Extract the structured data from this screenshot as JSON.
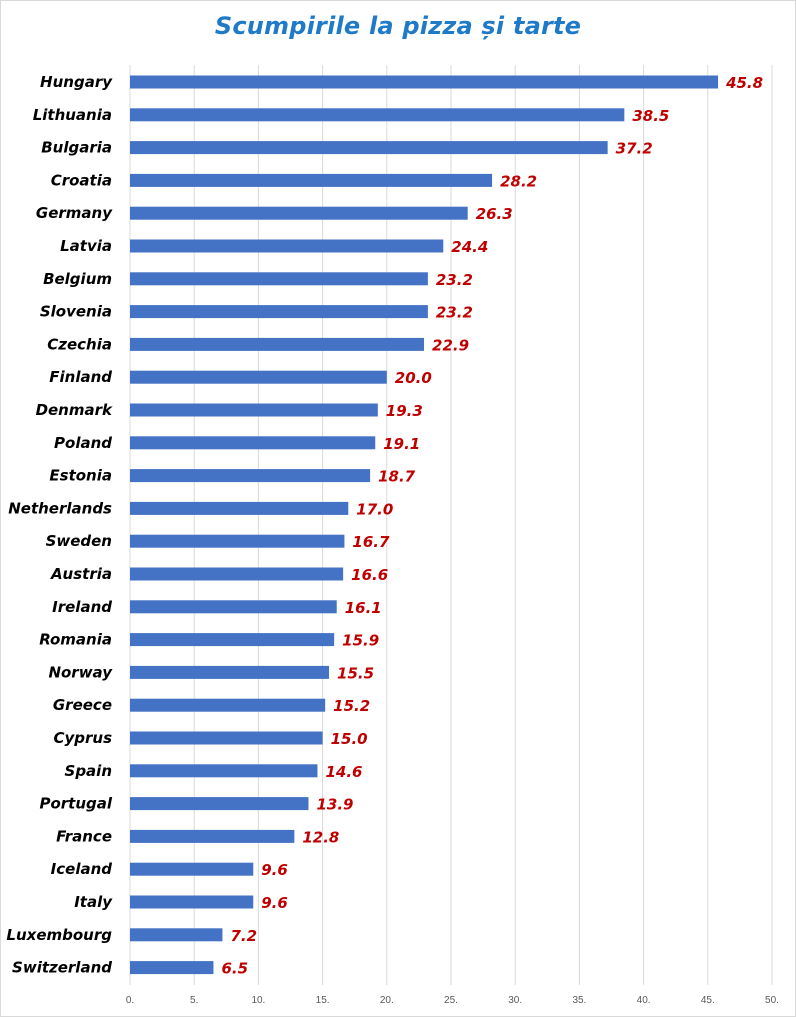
{
  "chart_data": {
    "type": "bar",
    "orientation": "horizontal",
    "title": "Scumpirile la pizza și tarte",
    "xlabel": "",
    "ylabel": "",
    "xlim": [
      0,
      50
    ],
    "grid": true,
    "ticks": [
      0,
      5,
      10,
      15,
      20,
      25,
      30,
      35,
      40,
      45,
      50
    ],
    "tick_labels": [
      "0.",
      "5.",
      "10.",
      "15.",
      "20.",
      "25.",
      "30.",
      "35.",
      "40.",
      "45.",
      "50."
    ],
    "colors": {
      "bar": "#4472c4",
      "value_label": "#c00000",
      "title": "#1f7bc8"
    },
    "categories": [
      "Hungary",
      "Lithuania",
      "Bulgaria",
      "Croatia",
      "Germany",
      "Latvia",
      "Belgium",
      "Slovenia",
      "Czechia",
      "Finland",
      "Denmark",
      "Poland",
      "Estonia",
      "Netherlands",
      "Sweden",
      "Austria",
      "Ireland",
      "Romania",
      "Norway",
      "Greece",
      "Cyprus",
      "Spain",
      "Portugal",
      "France",
      "Iceland",
      "Italy",
      "Luxembourg",
      "Switzerland"
    ],
    "values": [
      45.8,
      38.5,
      37.2,
      28.2,
      26.3,
      24.4,
      23.2,
      23.2,
      22.9,
      20.0,
      19.3,
      19.1,
      18.7,
      17.0,
      16.7,
      16.6,
      16.1,
      15.9,
      15.5,
      15.2,
      15.0,
      14.6,
      13.9,
      12.8,
      9.6,
      9.6,
      7.2,
      6.5
    ],
    "value_labels": [
      "45.8",
      "38.5",
      "37.2",
      "28.2",
      "26.3",
      "24.4",
      "23.2",
      "23.2",
      "22.9",
      "20.0",
      "19.3",
      "19.1",
      "18.7",
      "17.0",
      "16.7",
      "16.6",
      "16.1",
      "15.9",
      "15.5",
      "15.2",
      "15.0",
      "14.6",
      "13.9",
      "12.8",
      "9.6",
      "9.6",
      "7.2",
      "6.5"
    ]
  }
}
